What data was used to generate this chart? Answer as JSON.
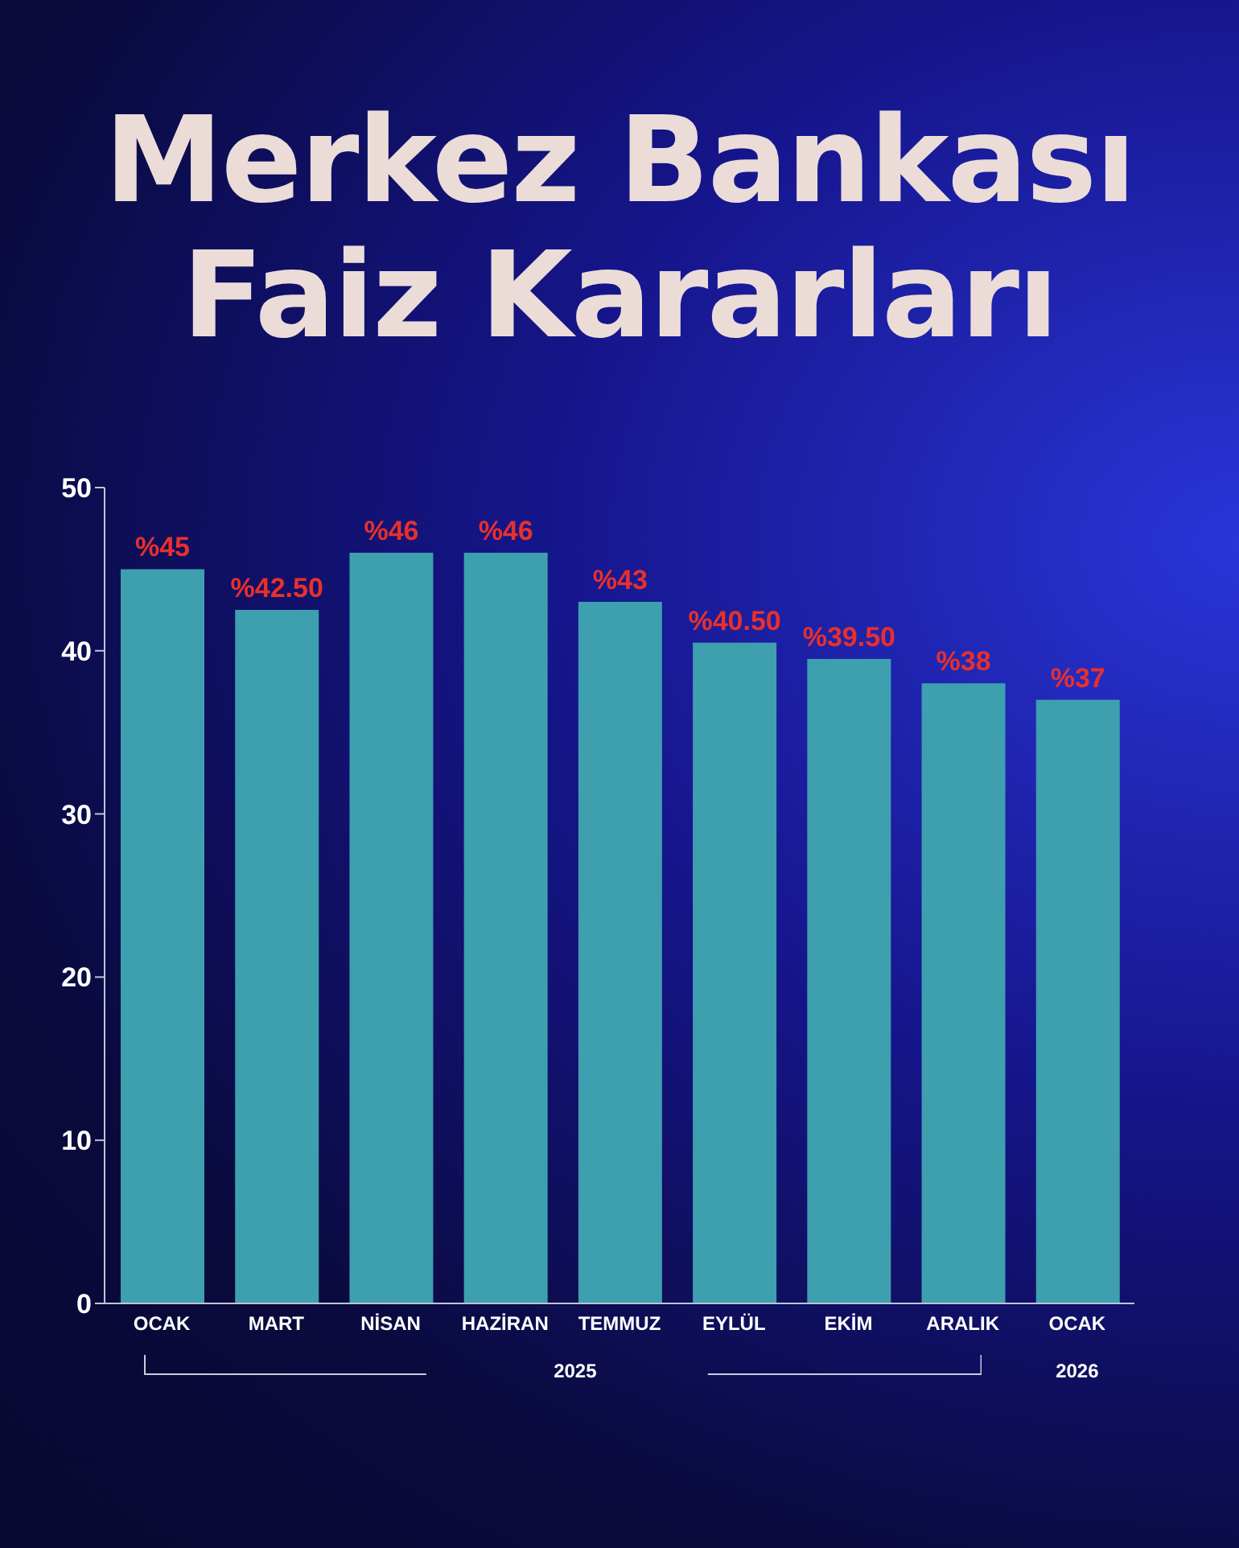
{
  "chart_data": {
    "type": "bar",
    "title": "Merkez Bankası\nFaiz Kararları",
    "categories": [
      "OCAK",
      "MART",
      "NİSAN",
      "HAZİRAN",
      "TEMMUZ",
      "EYLÜL",
      "EKİM",
      "ARALIK",
      "OCAK"
    ],
    "values": [
      45,
      42.5,
      46,
      46,
      43,
      40.5,
      39.5,
      38,
      37
    ],
    "value_labels": [
      "%45",
      "%42.50",
      "%46",
      "%46",
      "%43",
      "%40.50",
      "%39.50",
      "%38",
      "%37"
    ],
    "color": "#3e9fae",
    "ylim": [
      0,
      50
    ],
    "yticks": [
      0,
      10,
      20,
      30,
      40,
      50
    ],
    "annotations": [
      "2025",
      "2026"
    ]
  }
}
